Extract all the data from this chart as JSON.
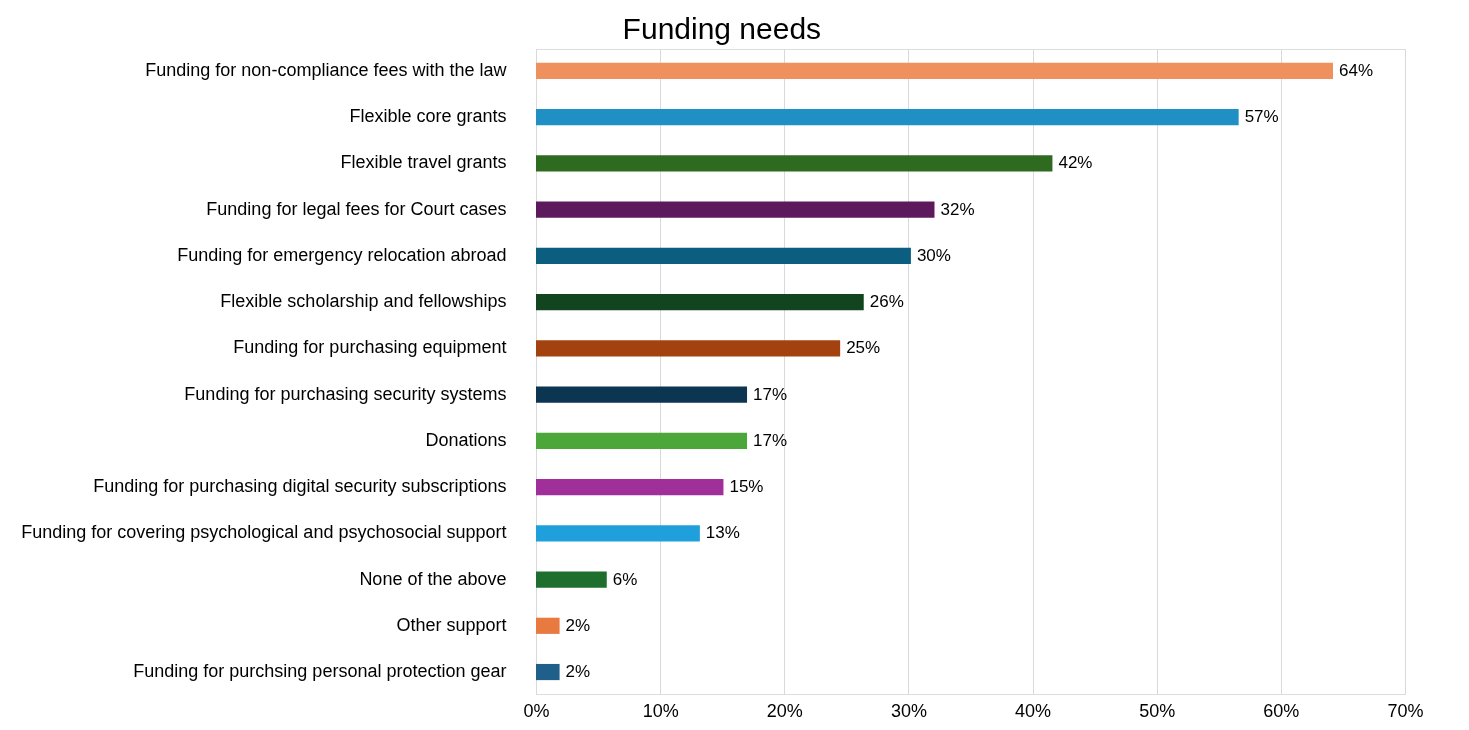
{
  "chart_data": {
    "type": "bar",
    "orientation": "horizontal",
    "title": "Funding needs",
    "categories": [
      "Funding for non-compliance fees with the law",
      "Flexible core grants",
      "Flexible travel grants",
      "Funding for legal fees for Court cases",
      "Funding for emergency relocation abroad",
      "Flexible scholarship and fellowships",
      "Funding for purchasing equipment",
      "Funding for purchasing security systems",
      "Donations",
      "Funding for purchasing digital security subscriptions",
      "Funding for covering psychological and psychosocial support",
      "None of the above",
      "Other support",
      "Funding for purchsing personal protection gear"
    ],
    "values": [
      64.2,
      56.6,
      41.6,
      32.1,
      30.2,
      26.4,
      24.5,
      17.0,
      17.0,
      15.1,
      13.2,
      5.7,
      1.9,
      1.9
    ],
    "value_labels": [
      "64%",
      "57%",
      "42%",
      "32%",
      "30%",
      "26%",
      "25%",
      "17%",
      "17%",
      "15%",
      "13%",
      "6%",
      "2%",
      "2%"
    ],
    "colors": [
      "#ef915e",
      "#1f8fc4",
      "#2e6b21",
      "#5c1a5c",
      "#0b5e80",
      "#12441f",
      "#a3410f",
      "#0b3550",
      "#4ca73a",
      "#a02f9a",
      "#1fa0dc",
      "#1e6f2e",
      "#e87a3f",
      "#1f5f8a"
    ],
    "xlim": [
      0,
      70
    ],
    "xticks": [
      {
        "value": 0,
        "label": "0%"
      },
      {
        "value": 10,
        "label": "10%"
      },
      {
        "value": 20,
        "label": "20%"
      },
      {
        "value": 30,
        "label": "30%"
      },
      {
        "value": 40,
        "label": "40%"
      },
      {
        "value": 50,
        "label": "50%"
      },
      {
        "value": 60,
        "label": "60%"
      },
      {
        "value": 70,
        "label": "70%"
      }
    ],
    "grid": "x"
  }
}
